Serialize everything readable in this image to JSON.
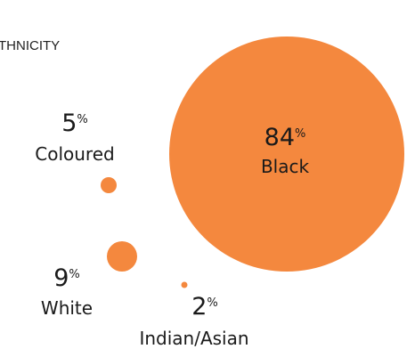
{
  "chart_data": {
    "type": "bubble",
    "title": "THNICITY",
    "unit": "%",
    "color": "#F4883E",
    "categories": [
      "Black",
      "Coloured",
      "White",
      "Indian/Asian"
    ],
    "values": [
      84,
      5,
      9,
      2
    ],
    "labels": [
      {
        "value": "84",
        "unit": "%",
        "name": "Black"
      },
      {
        "value": "5",
        "unit": "%",
        "name": "Coloured"
      },
      {
        "value": "9",
        "unit": "%",
        "name": "White"
      },
      {
        "value": "2",
        "unit": "%",
        "name": "Indian/Asian"
      }
    ]
  }
}
